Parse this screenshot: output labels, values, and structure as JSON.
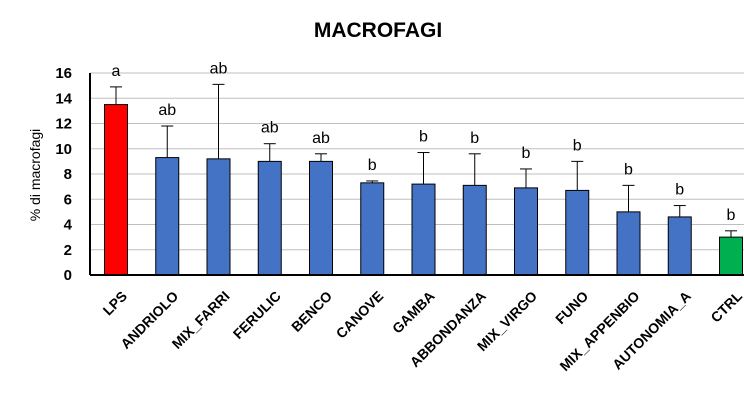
{
  "chart_data": {
    "type": "bar",
    "title": "MACROFAGI",
    "ylabel": "% di macrofagi",
    "xlabel": "",
    "ylim": [
      0,
      16
    ],
    "yticks": [
      "0",
      "2",
      "4",
      "6",
      "8",
      "10",
      "12",
      "14",
      "16"
    ],
    "grid": true,
    "categories": [
      "LPS",
      "ANDRIOLO",
      "MIX_FARRI",
      "FERULIC",
      "BENCO",
      "CANOVE",
      "GAMBA",
      "ABBONDANZA",
      "MIX_VIRGO",
      "FUNO",
      "MIX_APPENBIO",
      "AUTONOMIA_A",
      "CTRL"
    ],
    "values": [
      13.5,
      9.3,
      9.2,
      9.0,
      9.0,
      7.3,
      7.2,
      7.1,
      6.9,
      6.7,
      5.0,
      4.6,
      3.0
    ],
    "errors": [
      1.4,
      2.5,
      5.9,
      1.4,
      0.6,
      0.15,
      2.5,
      2.5,
      1.5,
      2.3,
      2.1,
      0.9,
      0.5
    ],
    "significance": [
      "a",
      "ab",
      "ab",
      "ab",
      "ab",
      "b",
      "b",
      "b",
      "b",
      "b",
      "b",
      "b",
      "b"
    ],
    "bar_colors": [
      "#ff0000",
      "#4472c4",
      "#4472c4",
      "#4472c4",
      "#4472c4",
      "#4472c4",
      "#4472c4",
      "#4472c4",
      "#4472c4",
      "#4472c4",
      "#4472c4",
      "#4472c4",
      "#00b050"
    ]
  }
}
